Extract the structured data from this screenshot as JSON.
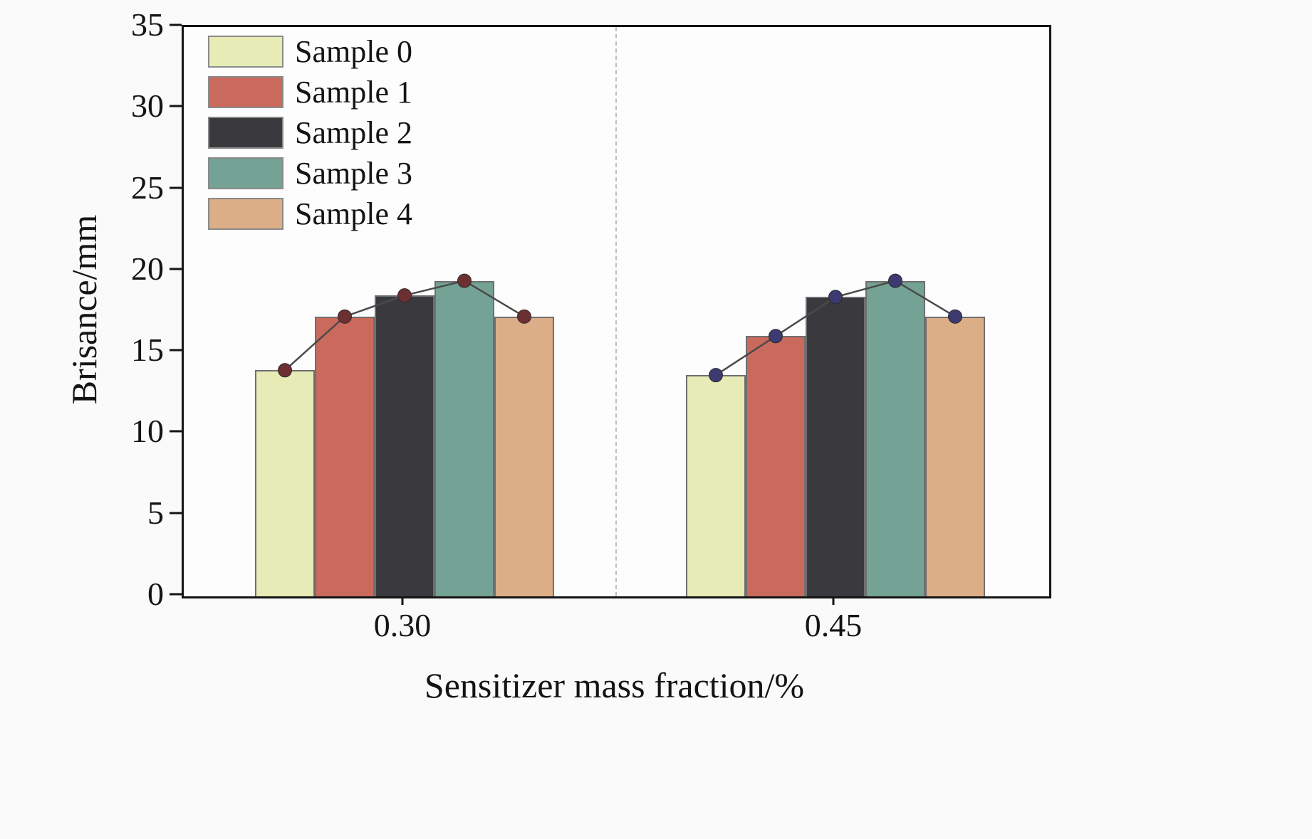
{
  "chart_data": {
    "type": "bar",
    "title": "",
    "xlabel": "Sensitizer mass fraction/%",
    "ylabel": "Brisance/mm",
    "ylim": [
      0,
      35
    ],
    "yticks": [
      0,
      5,
      10,
      15,
      20,
      25,
      30,
      35
    ],
    "categories": [
      "0.30",
      "0.45"
    ],
    "series": [
      {
        "name": "Sample 0",
        "color": "#e7ebb6",
        "values": [
          13.9,
          13.6
        ]
      },
      {
        "name": "Sample 1",
        "color": "#ca6a5d",
        "values": [
          17.2,
          16.0
        ]
      },
      {
        "name": "Sample 2",
        "color": "#3a3a3e",
        "values": [
          18.5,
          18.4
        ]
      },
      {
        "name": "Sample 3",
        "color": "#74a294",
        "values": [
          19.4,
          19.4
        ]
      },
      {
        "name": "Sample 4",
        "color": "#dcae87",
        "values": [
          17.2,
          17.2
        ]
      }
    ],
    "line_overlay": {
      "line_color": "#4a4a4a",
      "marker_colors": [
        "#6d3032",
        "#3c3a70"
      ]
    },
    "separator_style": "dashed",
    "legend_position": "top-left",
    "grid": false
  }
}
